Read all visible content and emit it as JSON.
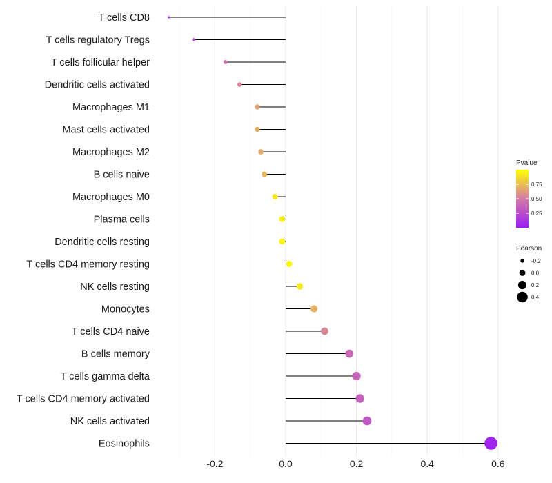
{
  "chart_data": {
    "type": "lollipop",
    "title": "",
    "xlabel": "",
    "ylabel": "",
    "xlim": [
      -0.33,
      0.63
    ],
    "x_ticks": [
      -0.2,
      0.0,
      0.2,
      0.4,
      0.6
    ],
    "x_tick_labels": [
      "-0.2",
      "0.0",
      "0.2",
      "0.4",
      "0.6"
    ],
    "grid": true,
    "baseline": 0.0,
    "categories": [
      "T cells CD8",
      "T cells regulatory  Tregs",
      "T cells follicular helper",
      "Dendritic cells activated",
      "Macrophages M1",
      "Mast cells activated",
      "Macrophages M2",
      "B cells naive",
      "Macrophages M0",
      "Plasma cells",
      "Dendritic cells resting",
      "T cells CD4 memory resting",
      "NK cells resting",
      "Monocytes",
      "T cells CD4 naive",
      "B cells memory",
      "T cells gamma delta",
      "T cells CD4 memory activated",
      "NK cells activated",
      "Eosinophils"
    ],
    "pearson": [
      -0.33,
      -0.26,
      -0.17,
      -0.13,
      -0.08,
      -0.08,
      -0.07,
      -0.06,
      -0.03,
      -0.01,
      -0.01,
      0.01,
      0.04,
      0.08,
      0.11,
      0.18,
      0.2,
      0.21,
      0.23,
      0.58
    ],
    "pvalue": [
      0.05,
      0.2,
      0.45,
      0.55,
      0.65,
      0.7,
      0.68,
      0.72,
      0.9,
      0.95,
      0.96,
      0.97,
      0.9,
      0.7,
      0.55,
      0.4,
      0.38,
      0.36,
      0.32,
      0.05
    ],
    "legend_position": "right",
    "legends": {
      "color": {
        "title": "Pvalue",
        "range": [
          0.0,
          1.0
        ],
        "breaks": [
          0.25,
          0.5,
          0.75
        ],
        "labels": [
          "0.25",
          "0.50",
          "0.75"
        ],
        "low_color": "#9b1df5",
        "mid_color": "#d47ba5",
        "high_color": "#ffff00"
      },
      "size": {
        "title": "Pearson",
        "breaks": [
          -0.2,
          0.0,
          0.2,
          0.4
        ],
        "labels": [
          "-0.2",
          "0.0",
          "0.2",
          "0.4"
        ]
      }
    }
  }
}
